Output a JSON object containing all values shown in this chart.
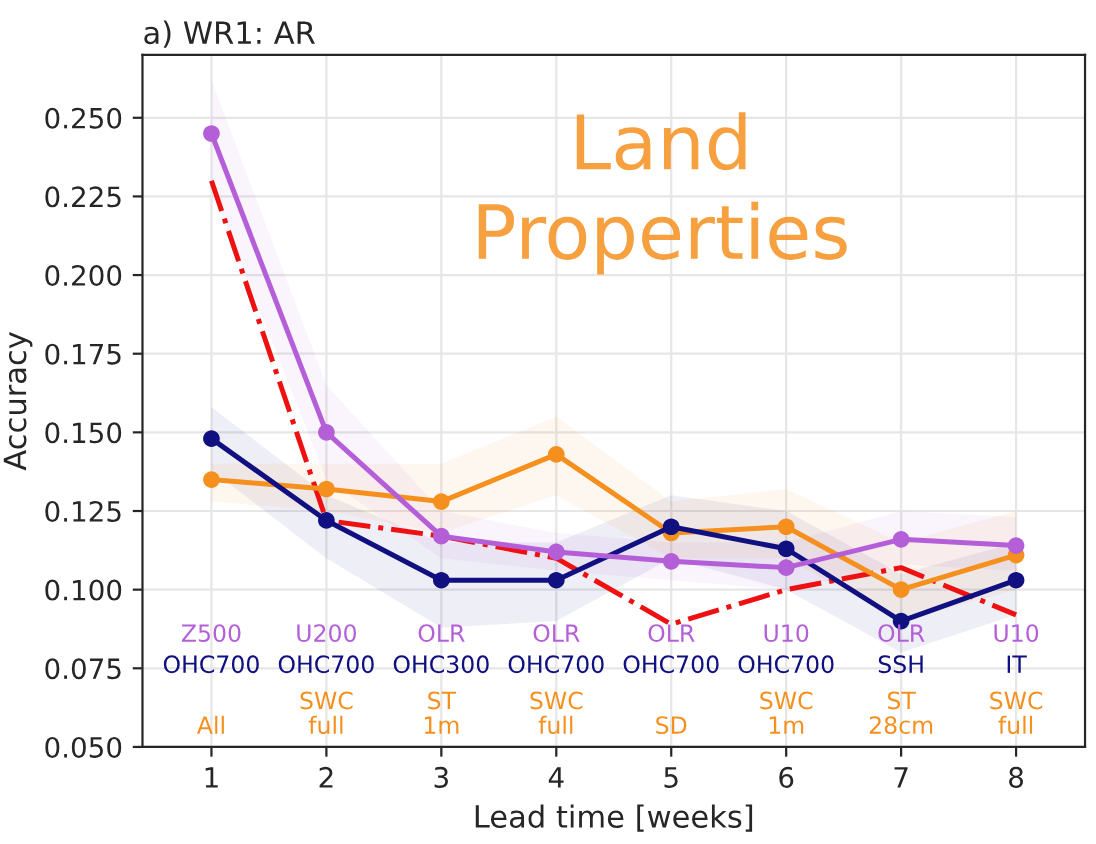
{
  "chart_data": {
    "type": "line",
    "title": "a) WR1: AR",
    "xlabel": "Lead time [weeks]",
    "ylabel": "Accuracy",
    "x": [
      1,
      2,
      3,
      4,
      5,
      6,
      7,
      8
    ],
    "xlim": [
      0.4,
      8.6
    ],
    "xticks": [
      1,
      2,
      3,
      4,
      5,
      6,
      7,
      8
    ],
    "ylim": [
      0.05,
      0.27
    ],
    "yticks": [
      {
        "value": 0.05,
        "label": "0.050"
      },
      {
        "value": 0.075,
        "label": "0.075"
      },
      {
        "value": 0.1,
        "label": "0.100"
      },
      {
        "value": 0.125,
        "label": "0.125"
      },
      {
        "value": 0.15,
        "label": "0.150"
      },
      {
        "value": 0.175,
        "label": "0.175"
      },
      {
        "value": 0.2,
        "label": "0.200"
      },
      {
        "value": 0.225,
        "label": "0.225"
      },
      {
        "value": 0.25,
        "label": "0.250"
      }
    ],
    "grid": true,
    "series": [
      {
        "color": "#b45fd8",
        "marker": "circle",
        "line_style": "solid",
        "values": [
          0.245,
          0.15,
          0.117,
          0.112,
          0.109,
          0.107,
          0.116,
          0.114
        ],
        "lower": [
          0.228,
          0.135,
          0.11,
          0.106,
          0.103,
          0.1,
          0.108,
          0.106
        ],
        "upper": [
          0.262,
          0.165,
          0.125,
          0.118,
          0.115,
          0.115,
          0.125,
          0.123
        ]
      },
      {
        "color": "#101080",
        "marker": "circle",
        "line_style": "solid",
        "values": [
          0.148,
          0.122,
          0.103,
          0.103,
          0.12,
          0.113,
          0.09,
          0.103
        ],
        "lower": [
          0.138,
          0.11,
          0.088,
          0.09,
          0.11,
          0.1,
          0.08,
          0.092
        ],
        "upper": [
          0.158,
          0.13,
          0.115,
          0.115,
          0.13,
          0.125,
          0.105,
          0.115
        ]
      },
      {
        "color": "#f5901e",
        "marker": "circle",
        "line_style": "solid",
        "values": [
          0.135,
          0.132,
          0.128,
          0.143,
          0.118,
          0.12,
          0.1,
          0.111
        ],
        "lower": [
          0.128,
          0.125,
          0.118,
          0.13,
          0.11,
          0.11,
          0.09,
          0.1
        ],
        "upper": [
          0.14,
          0.14,
          0.14,
          0.155,
          0.128,
          0.132,
          0.115,
          0.125
        ]
      },
      {
        "color": "#ee1111",
        "marker": "none",
        "line_style": "dashdot",
        "values": [
          0.23,
          0.122,
          0.117,
          0.11,
          0.089,
          0.1,
          0.107,
          0.092
        ]
      }
    ],
    "annotations": [
      "Land\nProperties",
      "Z500",
      "U200",
      "OLR",
      "OLR",
      "OLR",
      "U10",
      "OLR",
      "U10",
      "OHC700",
      "OHC700",
      "OHC300",
      "OHC700",
      "OHC700",
      "OHC700",
      "SSH",
      "IT",
      "All",
      "SWC\nfull",
      "ST\n1m",
      "SWC\nfull",
      "SD",
      "SWC\n1m",
      "ST\n28cm",
      "SWC\nfull"
    ]
  }
}
